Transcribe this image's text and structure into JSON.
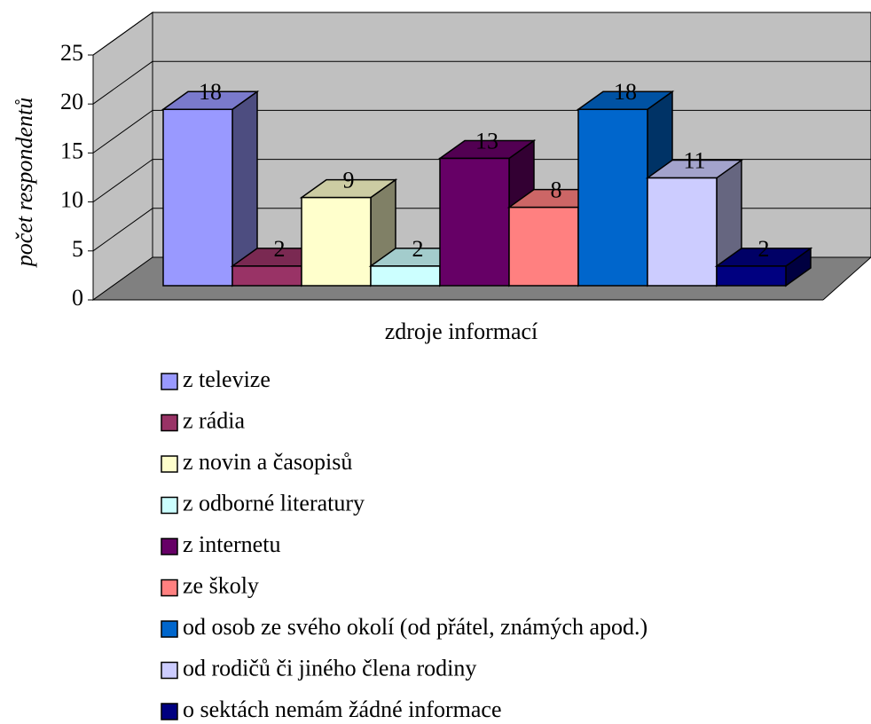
{
  "chart_data": {
    "type": "bar3d",
    "ylabel": "počet respondentů",
    "xlabel": "zdroje informací",
    "categories": [
      null
    ],
    "ylim": [
      0,
      25
    ],
    "yticks": [
      0,
      5,
      10,
      15,
      20,
      25
    ],
    "grid": true,
    "legend": "bottom",
    "series": [
      {
        "name": "z televize",
        "color": "#9999ff",
        "values": [
          18
        ]
      },
      {
        "name": "z rádia",
        "color": "#993366",
        "values": [
          2
        ]
      },
      {
        "name": "z novin a časopisů",
        "color": "#ffffcc",
        "values": [
          9
        ]
      },
      {
        "name": "z odborné literatury",
        "color": "#ccffff",
        "values": [
          2
        ]
      },
      {
        "name": "z internetu",
        "color": "#660066",
        "values": [
          13
        ]
      },
      {
        "name": "ze školy",
        "color": "#ff8080",
        "values": [
          8
        ]
      },
      {
        "name": "od osob ze svého okolí (od přátel, známých apod.)",
        "color": "#0066cc",
        "values": [
          18
        ]
      },
      {
        "name": "od rodičů či jiného člena rodiny",
        "color": "#ccccff",
        "values": [
          11
        ]
      },
      {
        "name": "o sektách nemám žádné informace",
        "color": "#000080",
        "values": [
          2
        ]
      }
    ]
  }
}
